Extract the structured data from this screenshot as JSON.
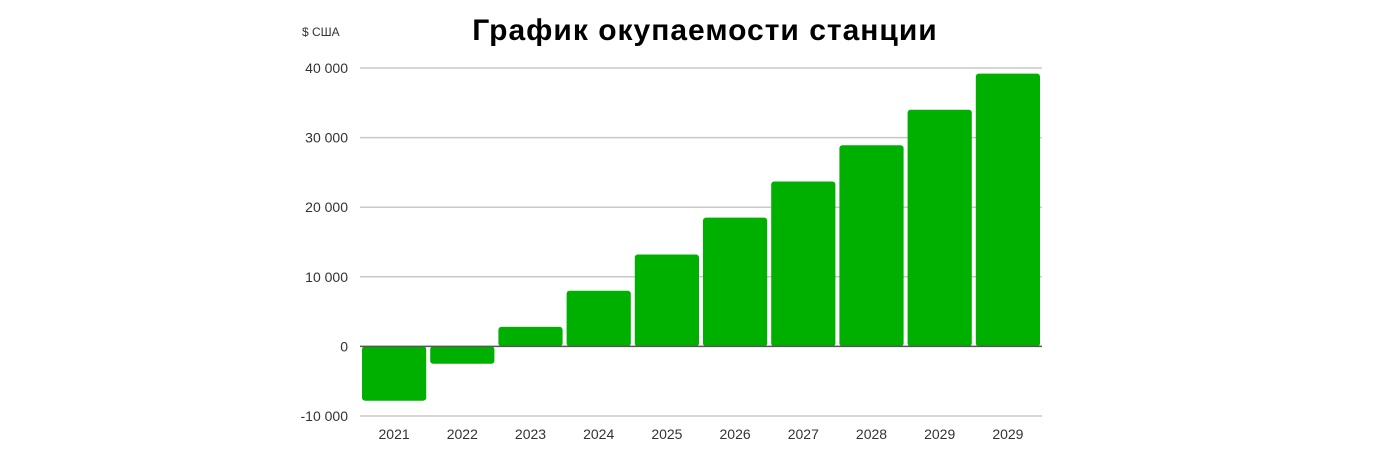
{
  "chart_data": {
    "type": "bar",
    "title": "График окупаемости станции",
    "ylabel": "$ США",
    "xlabel": "",
    "categories": [
      "2021",
      "2022",
      "2023",
      "2024",
      "2025",
      "2026",
      "2027",
      "2028",
      "2029",
      "2029"
    ],
    "values": [
      -7800,
      -2500,
      2800,
      8000,
      13200,
      18500,
      23700,
      28900,
      34000,
      39200
    ],
    "ylim": [
      -10000,
      40000
    ],
    "yticks": [
      -10000,
      0,
      10000,
      20000,
      30000,
      40000
    ],
    "ytick_labels": [
      "-10 000",
      "0",
      "10 000",
      "20 000",
      "30 000",
      "40 000"
    ],
    "grid": true,
    "bar_color": "#00b000",
    "grid_color": "#c8c8c8",
    "zero_line_color": "#555555"
  }
}
